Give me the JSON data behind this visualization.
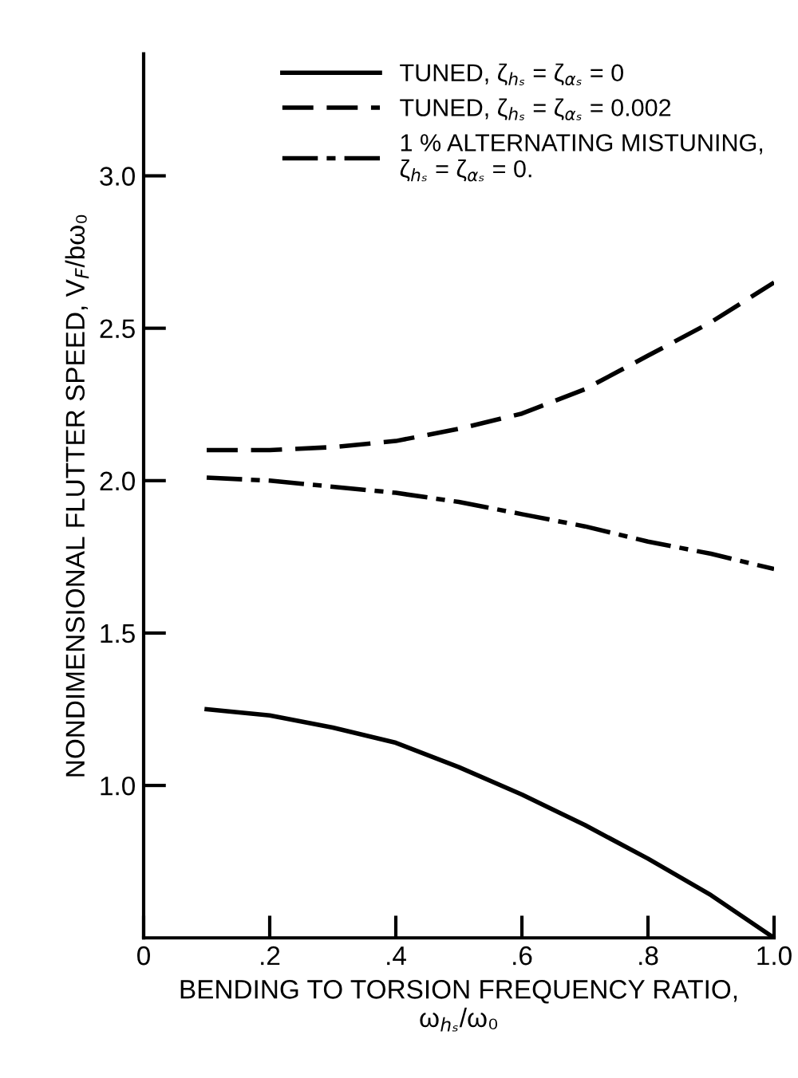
{
  "chart_data": {
    "type": "line",
    "xlabel": "BENDING TO TORSION FREQUENCY RATIO,\nω$_{hₛ}$/ω₀",
    "ylabel": "NONDIMENSIONAL FLUTTER SPEED, V$_{F}$/bω₀",
    "x": [
      0.1,
      0.2,
      0.3,
      0.4,
      0.5,
      0.6,
      0.7,
      0.8,
      0.9,
      1.0
    ],
    "series": [
      {
        "name": "TUNED, ζ$_{hₛ}$ = ζ$_{αₛ}$ = 0",
        "color": "#000000",
        "line_style": "solid",
        "values": [
          1.25,
          1.23,
          1.19,
          1.14,
          1.06,
          0.97,
          0.87,
          0.76,
          0.64,
          0.5
        ]
      },
      {
        "name": "TUNED, ζ$_{hₛ}$ = ζ$_{αₛ}$ = 0.002",
        "color": "#000000",
        "line_style": "dashed",
        "values": [
          2.1,
          2.1,
          2.11,
          2.13,
          2.17,
          2.22,
          2.3,
          2.41,
          2.52,
          2.65
        ]
      },
      {
        "name": "1 % ALTERNATING MISTUNING,\nζ$_{hₛ}$ = ζ$_{αₛ}$ = 0.",
        "color": "#000000",
        "line_style": "dashdot",
        "values": [
          2.01,
          2.0,
          1.98,
          1.96,
          1.93,
          1.89,
          1.85,
          1.8,
          1.76,
          1.71
        ]
      }
    ],
    "xlim": [
      0,
      1.0
    ],
    "ylim": [
      0.5,
      3.4
    ],
    "xticks": [
      0,
      {
        "value": 0.2,
        "label": ".2"
      },
      {
        "value": 0.4,
        "label": ".4"
      },
      {
        "value": 0.6,
        "label": ".6"
      },
      {
        "value": 0.8,
        "label": ".8"
      },
      {
        "value": 1.0,
        "label": "1.0"
      }
    ],
    "yticks": [
      {
        "value": 1.0,
        "label": "1.0"
      },
      1.5,
      {
        "value": 2.0,
        "label": "2.0"
      },
      2.5,
      {
        "value": 3.0,
        "label": "3.0"
      }
    ],
    "grid": false,
    "legend": "top right",
    "marker": "none"
  }
}
